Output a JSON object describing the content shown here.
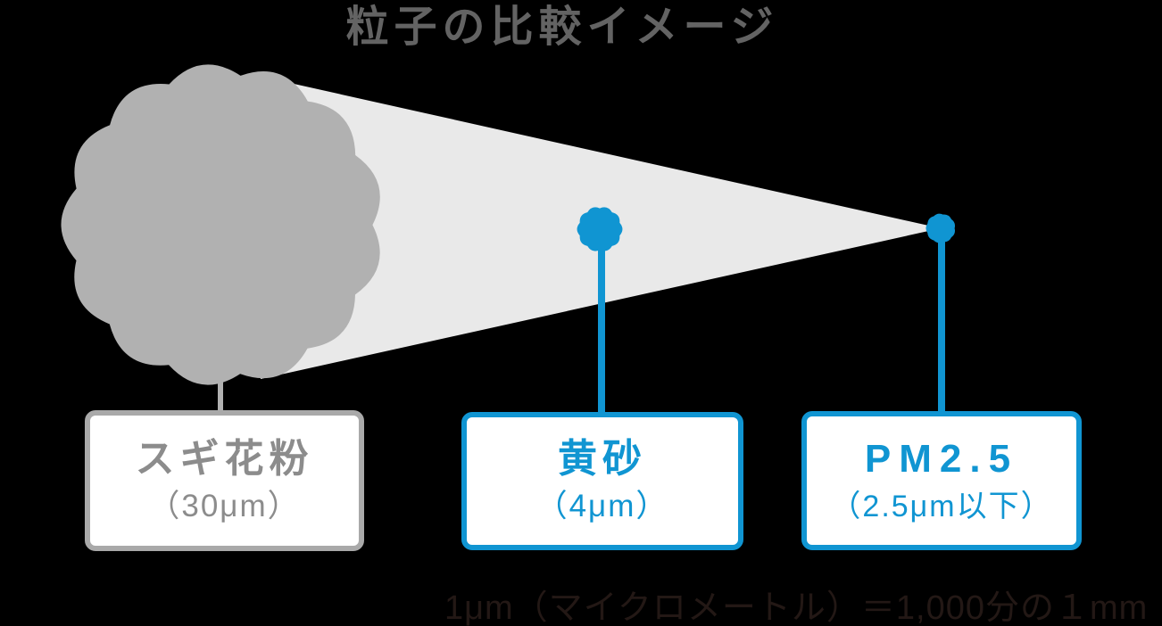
{
  "title": "粒子の比較イメージ",
  "footnote": "1μm（マイクロメートル）＝1,000分の１mm",
  "particles": [
    {
      "id": "sugi",
      "name": "スギ花粉",
      "size_label": "（30μm）",
      "size_um": 30,
      "style": "gray"
    },
    {
      "id": "kosa",
      "name": "黄砂",
      "size_label": "（4μm）",
      "size_um": 4,
      "style": "blue"
    },
    {
      "id": "pm25",
      "name": "PM2.5",
      "size_label": "（2.5μm以下）",
      "size_um": 2.5,
      "style": "blue"
    }
  ],
  "colors": {
    "background": "#000000",
    "title_gray": "#636363",
    "particle_gray": "#b1b1b1",
    "cone_gray": "#e9e9e9",
    "accent_blue": "#1095d2",
    "label_gray": "#8c8c8c",
    "box_border_gray": "#a9a9a9",
    "box_bg": "#ffffff",
    "footnote_dark": "#231815"
  }
}
